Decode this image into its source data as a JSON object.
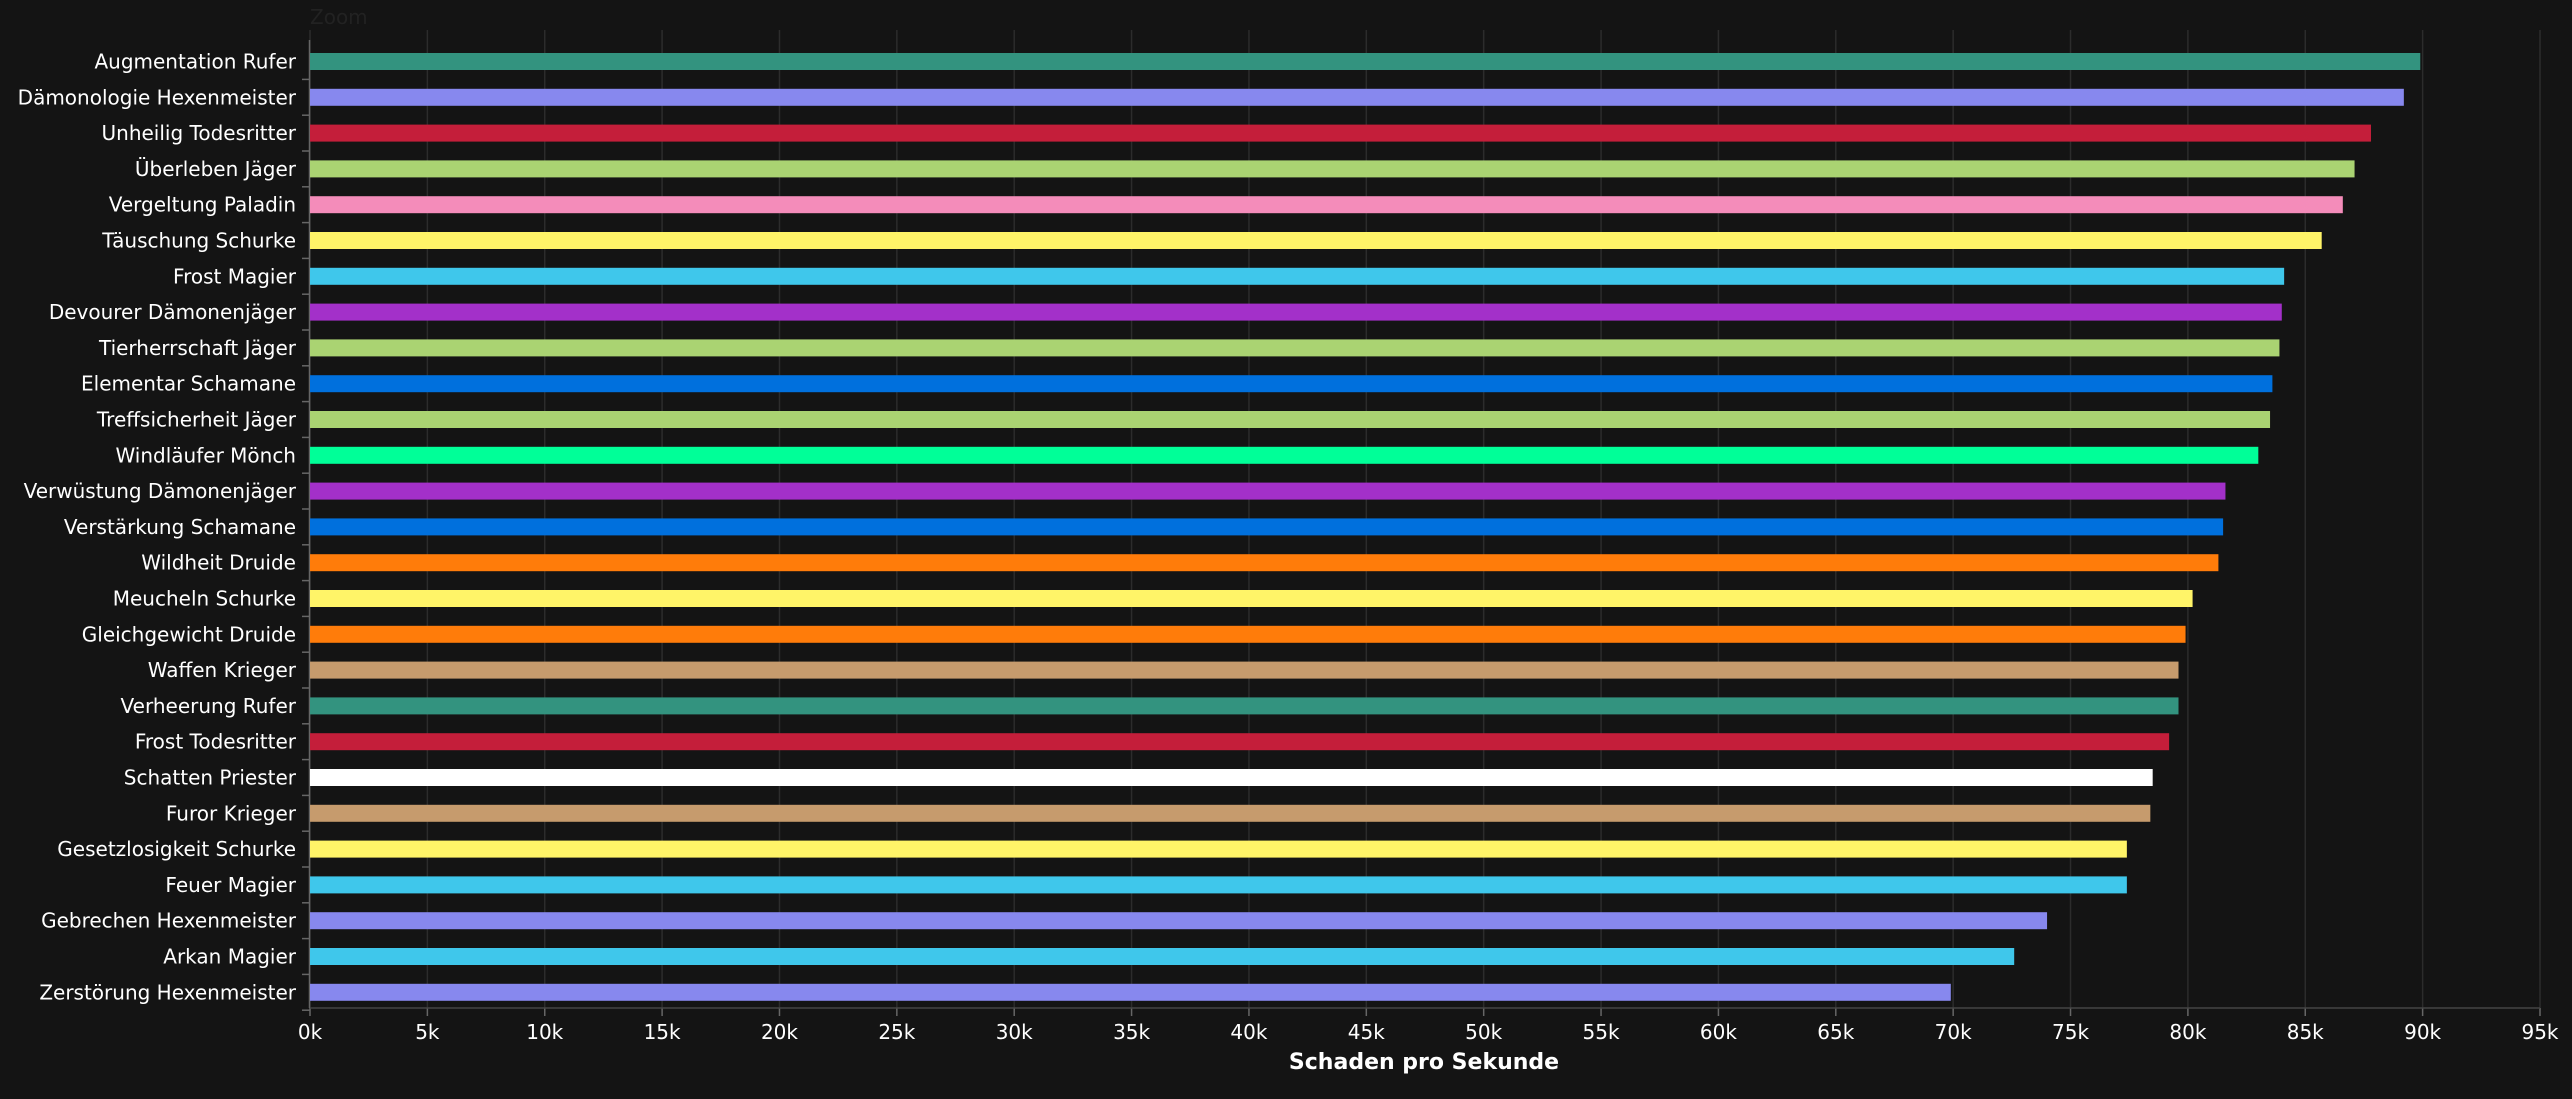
{
  "zoom_label": "Zoom",
  "chart_data": {
    "type": "bar",
    "orientation": "horizontal",
    "xlabel": "Schaden pro Sekunde",
    "xlim": [
      0,
      95000
    ],
    "x_ticks": [
      "0k",
      "5k",
      "10k",
      "15k",
      "20k",
      "25k",
      "30k",
      "35k",
      "40k",
      "45k",
      "50k",
      "55k",
      "60k",
      "65k",
      "70k",
      "75k",
      "80k",
      "85k",
      "90k",
      "95k"
    ],
    "grid": true,
    "categories": [
      "Augmentation Rufer",
      "Dämonologie Hexenmeister",
      "Unheilig Todesritter",
      "Überleben Jäger",
      "Vergeltung Paladin",
      "Täuschung Schurke",
      "Frost Magier",
      "Devourer Dämonenjäger",
      "Tierherrschaft Jäger",
      "Elementar Schamane",
      "Treffsicherheit Jäger",
      "Windläufer Mönch",
      "Verwüstung Dämonenjäger",
      "Verstärkung Schamane",
      "Wildheit Druide",
      "Meucheln Schurke",
      "Gleichgewicht Druide",
      "Waffen Krieger",
      "Verheerung Rufer",
      "Frost Todesritter",
      "Schatten Priester",
      "Furor Krieger",
      "Gesetzlosigkeit Schurke",
      "Feuer Magier",
      "Gebrechen Hexenmeister",
      "Arkan Magier",
      "Zerstörung Hexenmeister"
    ],
    "values": [
      89900,
      89200,
      87800,
      87100,
      86600,
      85700,
      84100,
      84000,
      83900,
      83600,
      83500,
      83000,
      81600,
      81500,
      81300,
      80200,
      79900,
      79600,
      79600,
      79200,
      78500,
      78400,
      77400,
      77400,
      74000,
      72600,
      69900
    ],
    "colors": [
      "#33937F",
      "#8788EE",
      "#C41E3A",
      "#AAD372",
      "#F48CBA",
      "#FFF468",
      "#3FC7EB",
      "#A330C9",
      "#AAD372",
      "#0070DD",
      "#AAD372",
      "#00FF98",
      "#A330C9",
      "#0070DD",
      "#FF7C0A",
      "#FFF468",
      "#FF7C0A",
      "#C69B6D",
      "#33937F",
      "#C41E3A",
      "#FFFFFF",
      "#C69B6D",
      "#FFF468",
      "#3FC7EB",
      "#8788EE",
      "#3FC7EB",
      "#8788EE"
    ]
  }
}
